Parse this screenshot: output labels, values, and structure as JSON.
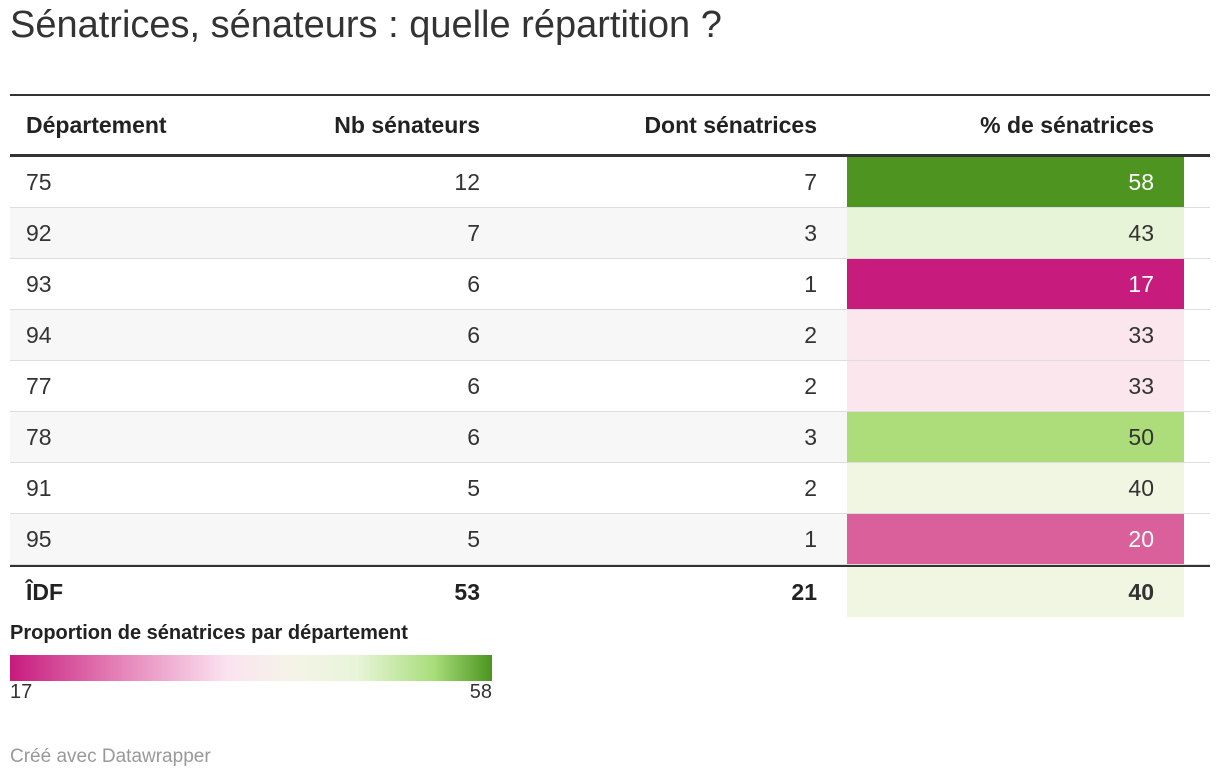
{
  "title": "Sénatrices, sénateurs : quelle répartition ?",
  "chart_data": {
    "type": "table",
    "columns": [
      "Département",
      "Nb sénateurs",
      "Dont sénatrices",
      "% de sénatrices"
    ],
    "rows": [
      {
        "dept": "75",
        "nb": "12",
        "dont": "7",
        "pct": 58,
        "color": "#4e9421",
        "text_color": "#ffffff"
      },
      {
        "dept": "92",
        "nb": "7",
        "dont": "3",
        "pct": 43,
        "color": "#e8f4d7",
        "text_color": "#333333"
      },
      {
        "dept": "93",
        "nb": "6",
        "dont": "1",
        "pct": 17,
        "color": "#c71b7d",
        "text_color": "#ffffff"
      },
      {
        "dept": "94",
        "nb": "6",
        "dont": "2",
        "pct": 33,
        "color": "#fbe6ee",
        "text_color": "#333333"
      },
      {
        "dept": "77",
        "nb": "6",
        "dont": "2",
        "pct": 33,
        "color": "#fbe6ee",
        "text_color": "#333333"
      },
      {
        "dept": "78",
        "nb": "6",
        "dont": "3",
        "pct": 50,
        "color": "#addd7a",
        "text_color": "#333333"
      },
      {
        "dept": "91",
        "nb": "5",
        "dont": "2",
        "pct": 40,
        "color": "#f1f6e3",
        "text_color": "#333333"
      },
      {
        "dept": "95",
        "nb": "5",
        "dont": "1",
        "pct": 20,
        "color": "#d9609b",
        "text_color": "#ffffff"
      }
    ],
    "total": {
      "dept": "ÎDF",
      "nb": "53",
      "dont": "21",
      "pct": 40,
      "color": "#f1f6e3",
      "text_color": "#333333"
    },
    "legend": {
      "title": "Proportion de sénatrices par département",
      "min": "17",
      "max": "58",
      "colors": [
        "#c71b7d",
        "#fbe3f0",
        "#f5f3e8",
        "#4b9420"
      ]
    }
  },
  "footer": "Créé avec Datawrapper"
}
